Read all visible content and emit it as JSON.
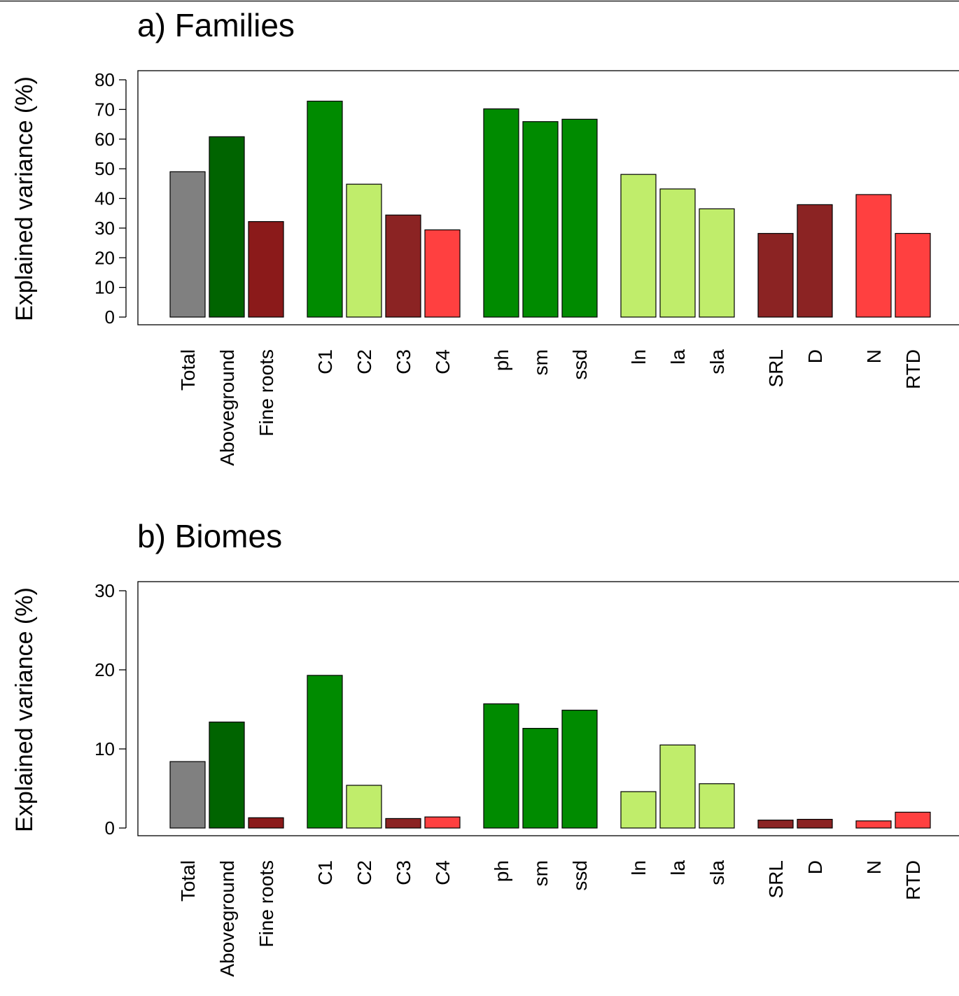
{
  "chart_data": [
    {
      "type": "bar",
      "title": "a) Families",
      "xlabel": "",
      "ylabel": "Explained variance (%)",
      "ylim": [
        0,
        80
      ],
      "yticks": [
        0,
        10,
        20,
        30,
        40,
        50,
        60,
        70,
        80
      ],
      "grid": false,
      "categories": [
        "Total",
        "Aboveground",
        "Fine roots",
        "C1",
        "C2",
        "C3",
        "C4",
        "ph",
        "sm",
        "ssd",
        "ln",
        "la",
        "sla",
        "SRL",
        "D",
        "N",
        "RTD"
      ],
      "groups": [
        [
          0,
          1,
          2
        ],
        [
          3,
          4,
          5,
          6
        ],
        [
          7,
          8,
          9
        ],
        [
          10,
          11,
          12
        ],
        [
          13,
          14
        ],
        [
          15,
          16
        ]
      ],
      "values": [
        49,
        60.8,
        32.2,
        72.8,
        44.8,
        34.4,
        29.4,
        70.2,
        65.9,
        66.7,
        48.1,
        43.2,
        36.5,
        28.2,
        37.9,
        41.3,
        28.2
      ],
      "colors": [
        "#808080",
        "#006400",
        "#8b1a1a",
        "#008b00",
        "#c0ed6b",
        "#8b2323",
        "#ff4040",
        "#008b00",
        "#008b00",
        "#008b00",
        "#c0ed6b",
        "#c0ed6b",
        "#c0ed6b",
        "#8b2323",
        "#8b2323",
        "#ff4040",
        "#ff4040"
      ]
    },
    {
      "type": "bar",
      "title": "b) Biomes",
      "xlabel": "",
      "ylabel": "Explained variance (%)",
      "ylim": [
        0,
        30
      ],
      "yticks": [
        0,
        10,
        20,
        30
      ],
      "grid": false,
      "categories": [
        "Total",
        "Aboveground",
        "Fine roots",
        "C1",
        "C2",
        "C3",
        "C4",
        "ph",
        "sm",
        "ssd",
        "ln",
        "la",
        "sla",
        "SRL",
        "D",
        "N",
        "RTD"
      ],
      "groups": [
        [
          0,
          1,
          2
        ],
        [
          3,
          4,
          5,
          6
        ],
        [
          7,
          8,
          9
        ],
        [
          10,
          11,
          12
        ],
        [
          13,
          14
        ],
        [
          15,
          16
        ]
      ],
      "values": [
        8.4,
        13.4,
        1.3,
        19.3,
        5.4,
        1.2,
        1.4,
        15.7,
        12.6,
        14.9,
        4.6,
        10.5,
        5.6,
        1.0,
        1.1,
        0.9,
        2.0
      ],
      "colors": [
        "#808080",
        "#006400",
        "#8b1a1a",
        "#008b00",
        "#c0ed6b",
        "#8b2323",
        "#ff4040",
        "#008b00",
        "#008b00",
        "#008b00",
        "#c0ed6b",
        "#c0ed6b",
        "#c0ed6b",
        "#8b2323",
        "#8b2323",
        "#ff4040",
        "#ff4040"
      ]
    }
  ]
}
